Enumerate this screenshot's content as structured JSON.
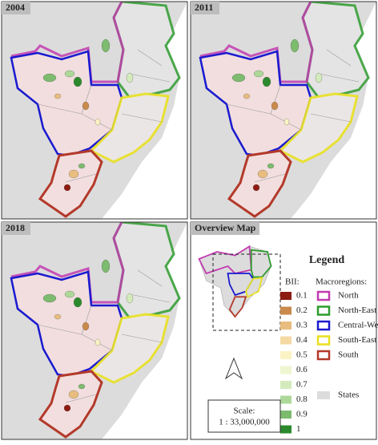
{
  "panels": [
    {
      "label": "2004"
    },
    {
      "label": "2011"
    },
    {
      "label": "2018"
    }
  ],
  "overview": {
    "label": "Overview Map"
  },
  "legend": {
    "title": "Legend",
    "bii_label": "BII:",
    "bii": [
      {
        "value": 0.1,
        "color": "#8e1b12"
      },
      {
        "value": 0.2,
        "color": "#c98a4b"
      },
      {
        "value": 0.3,
        "color": "#e9bd7e"
      },
      {
        "value": 0.4,
        "color": "#f5d9a3"
      },
      {
        "value": 0.5,
        "color": "#fbf3c4"
      },
      {
        "value": 0.6,
        "color": "#eef6cf"
      },
      {
        "value": 0.7,
        "color": "#d3ebbb"
      },
      {
        "value": 0.8,
        "color": "#add89a"
      },
      {
        "value": 0.9,
        "color": "#7dbb6e"
      },
      {
        "value": 1,
        "color": "#2c8a2c"
      }
    ],
    "macro_label": "Macroregions:",
    "macroregions": [
      {
        "name": "North",
        "color": "#c23bb0"
      },
      {
        "name": "North-East",
        "color": "#2e9b2e"
      },
      {
        "name": "Central-West",
        "color": "#1a1ad0"
      },
      {
        "name": "South-East",
        "color": "#e8e020"
      },
      {
        "name": "South",
        "color": "#b3392a"
      }
    ],
    "states": "States",
    "scale_label": "Scale:",
    "scale": "1 : 33,000,000"
  }
}
